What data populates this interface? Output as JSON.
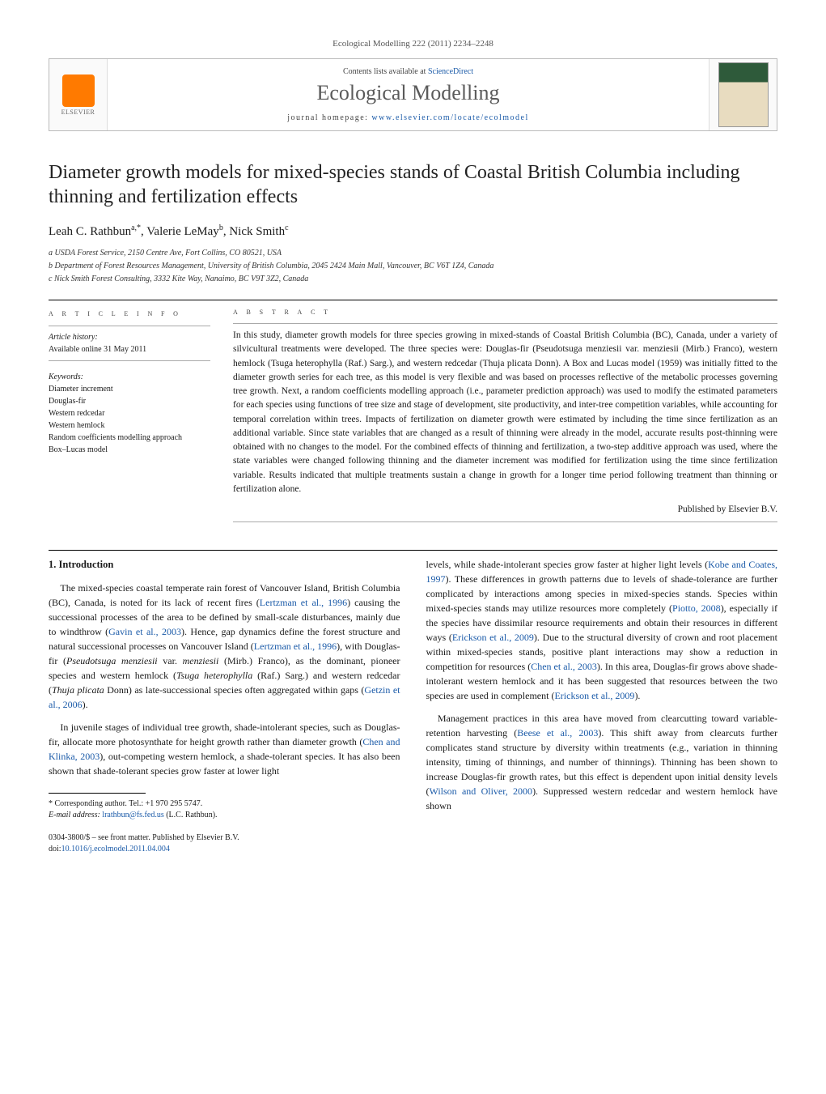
{
  "journal_ref": "Ecological Modelling 222 (2011) 2234–2248",
  "header": {
    "contents_prefix": "Contents lists available at ",
    "contents_link": "ScienceDirect",
    "journal_name": "Ecological Modelling",
    "homepage_prefix": "journal homepage: ",
    "homepage_link": "www.elsevier.com/locate/ecolmodel",
    "elsevier_label": "ELSEVIER"
  },
  "title": "Diameter growth models for mixed-species stands of Coastal British Columbia including thinning and fertilization effects",
  "authors_html": "Leah C. Rathbun|a,*|, Valerie LeMay|b|, Nick Smith|c|",
  "authors": [
    {
      "name": "Leah C. Rathbun",
      "sup": "a,*"
    },
    {
      "name": "Valerie LeMay",
      "sup": "b"
    },
    {
      "name": "Nick Smith",
      "sup": "c"
    }
  ],
  "affiliations": [
    "a USDA Forest Service, 2150 Centre Ave, Fort Collins, CO 80521, USA",
    "b Department of Forest Resources Management, University of British Columbia, 2045 2424 Main Mall, Vancouver, BC V6T 1Z4, Canada",
    "c Nick Smith Forest Consulting, 3332 Kite Way, Nanaimo, BC V9T 3Z2, Canada"
  ],
  "info": {
    "heading": "a r t i c l e   i n f o",
    "history_label": "Article history:",
    "history_line": "Available online 31 May 2011",
    "keywords_label": "Keywords:",
    "keywords": [
      "Diameter increment",
      "Douglas-fir",
      "Western redcedar",
      "Western hemlock",
      "Random coefficients modelling approach",
      "Box–Lucas model"
    ]
  },
  "abstract": {
    "heading": "a b s t r a c t",
    "text": "In this study, diameter growth models for three species growing in mixed-stands of Coastal British Columbia (BC), Canada, under a variety of silvicultural treatments were developed. The three species were: Douglas-fir (Pseudotsuga menziesii var. menziesii (Mirb.) Franco), western hemlock (Tsuga heterophylla (Raf.) Sarg.), and western redcedar (Thuja plicata Donn). A Box and Lucas model (1959) was initially fitted to the diameter growth series for each tree, as this model is very flexible and was based on processes reflective of the metabolic processes governing tree growth. Next, a random coefficients modelling approach (i.e., parameter prediction approach) was used to modify the estimated parameters for each species using functions of tree size and stage of development, site productivity, and inter-tree competition variables, while accounting for temporal correlation within trees. Impacts of fertilization on diameter growth were estimated by including the time since fertilization as an additional variable. Since state variables that are changed as a result of thinning were already in the model, accurate results post-thinning were obtained with no changes to the model. For the combined effects of thinning and fertilization, a two-step additive approach was used, where the state variables were changed following thinning and the diameter increment was modified for fertilization using the time since fertilization variable. Results indicated that multiple treatments sustain a change in growth for a longer time period following treatment than thinning or fertilization alone.",
    "published_by": "Published by Elsevier B.V."
  },
  "sections": {
    "intro_heading": "1. Introduction",
    "col1_p1_a": "The mixed-species coastal temperate rain forest of Vancouver Island, British Columbia (BC), Canada, is noted for its lack of recent fires (",
    "col1_p1_ref1": "Lertzman et al., 1996",
    "col1_p1_b": ") causing the successional processes of the area to be defined by small-scale disturbances, mainly due to windthrow (",
    "col1_p1_ref2": "Gavin et al., 2003",
    "col1_p1_c": "). Hence, gap dynamics define the forest structure and natural successional processes on Vancouver Island (",
    "col1_p1_ref3": "Lertzman et al., 1996",
    "col1_p1_d": "), with Douglas-fir (",
    "col1_p1_sp1": "Pseudotsuga menziesii",
    "col1_p1_e": " var. ",
    "col1_p1_sp2": "menziesii",
    "col1_p1_f": " (Mirb.) Franco), as the dominant, pioneer species and western hemlock (",
    "col1_p1_sp3": "Tsuga heterophylla",
    "col1_p1_g": " (Raf.) Sarg.) and western redcedar (",
    "col1_p1_sp4": "Thuja plicata",
    "col1_p1_h": " Donn) as late-successional species often aggregated within gaps (",
    "col1_p1_ref4": "Getzin et al., 2006",
    "col1_p1_i": ").",
    "col1_p2_a": "In juvenile stages of individual tree growth, shade-intolerant species, such as Douglas-fir, allocate more photosynthate for height growth rather than diameter growth (",
    "col1_p2_ref1": "Chen and Klinka, 2003",
    "col1_p2_b": "), out-competing western hemlock, a shade-tolerant species. It has also been shown that shade-tolerant species grow faster at lower light",
    "col2_p1_a": "levels, while shade-intolerant species grow faster at higher light levels (",
    "col2_p1_ref1": "Kobe and Coates, 1997",
    "col2_p1_b": "). These differences in growth patterns due to levels of shade-tolerance are further complicated by interactions among species in mixed-species stands. Species within mixed-species stands may utilize resources more completely (",
    "col2_p1_ref2": "Piotto, 2008",
    "col2_p1_c": "), especially if the species have dissimilar resource requirements and obtain their resources in different ways (",
    "col2_p1_ref3": "Erickson et al., 2009",
    "col2_p1_d": "). Due to the structural diversity of crown and root placement within mixed-species stands, positive plant interactions may show a reduction in competition for resources (",
    "col2_p1_ref4": "Chen et al., 2003",
    "col2_p1_e": "). In this area, Douglas-fir grows above shade-intolerant western hemlock and it has been suggested that resources between the two species are used in complement (",
    "col2_p1_ref5": "Erickson et al., 2009",
    "col2_p1_f": ").",
    "col2_p2_a": "Management practices in this area have moved from clearcutting toward variable-retention harvesting (",
    "col2_p2_ref1": "Beese et al., 2003",
    "col2_p2_b": "). This shift away from clearcuts further complicates stand structure by diversity within treatments (e.g., variation in thinning intensity, timing of thinnings, and number of thinnings). Thinning has been shown to increase Douglas-fir growth rates, but this effect is dependent upon initial density levels (",
    "col2_p2_ref2": "Wilson and Oliver, 2000",
    "col2_p2_c": "). Suppressed western redcedar and western hemlock have shown"
  },
  "corr": {
    "line1": "* Corresponding author. Tel.: +1 970 295 5747.",
    "email_label": "E-mail address: ",
    "email": "lrathbun@fs.fed.us",
    "email_suffix": " (L.C. Rathbun)."
  },
  "bottom": {
    "line1": "0304-3800/$ – see front matter. Published by Elsevier B.V.",
    "doi_prefix": "doi:",
    "doi": "10.1016/j.ecolmodel.2011.04.004"
  },
  "colors": {
    "link": "#1a5aa8",
    "elsevier_orange": "#ff7a00",
    "text": "#1a1a1a",
    "grey_heading": "#5a5a5a"
  }
}
